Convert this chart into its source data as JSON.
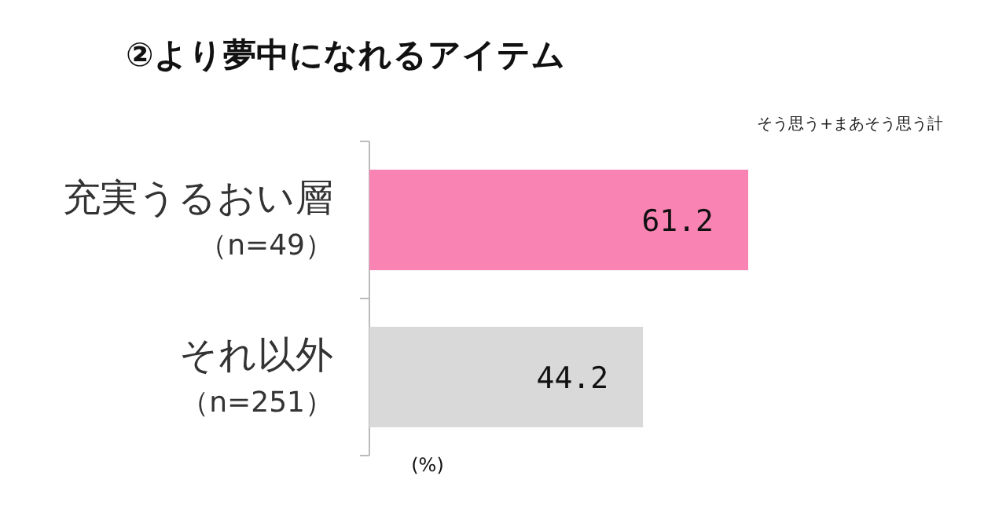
{
  "chart_data": {
    "type": "bar",
    "orientation": "horizontal",
    "title": "②より夢中になれるアイテム",
    "annotations": [
      "そう思う+まあそう思う計"
    ],
    "xlabel": "(%)",
    "categories": [
      "充実うるおい層（n=49）",
      "それ以外（n=251）"
    ],
    "values": [
      61.2,
      44.2
    ],
    "colors": [
      "#f984b3",
      "#d9d9d9"
    ],
    "tick_labels": "y",
    "data_labels": true
  }
}
